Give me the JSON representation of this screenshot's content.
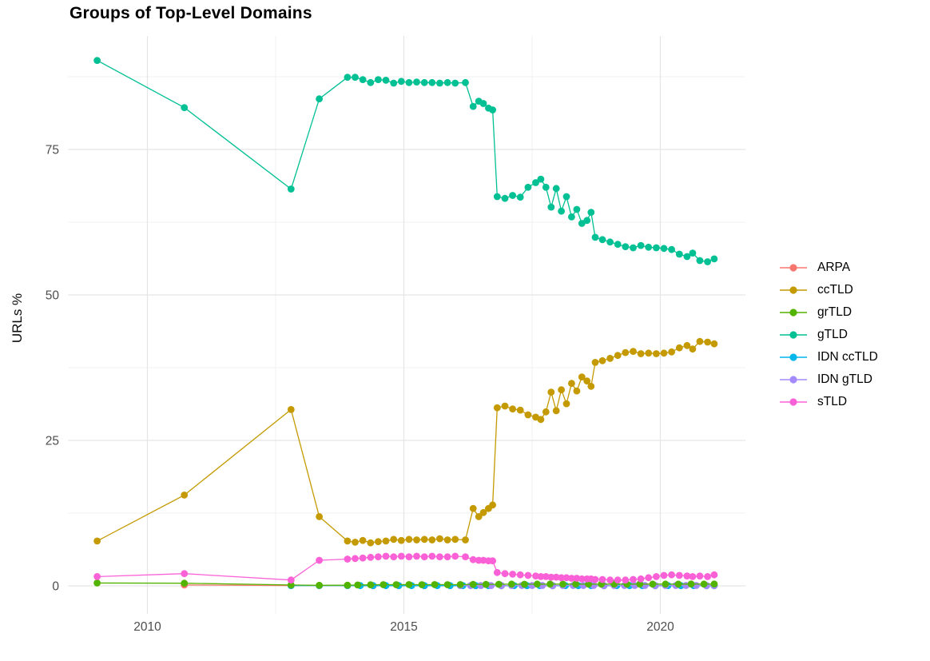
{
  "figure": {
    "title": "Groups of Top-Level Domains",
    "y_axis_title": "URLs %"
  },
  "chart_data": {
    "type": "line",
    "title": "Groups of Top-Level Domains",
    "xlabel": "",
    "ylabel": "URLs %",
    "grid": true,
    "legend_position": "right",
    "x_ticks": [
      2010,
      2015,
      2020
    ],
    "x_minor": [
      2012.5,
      2017.5
    ],
    "y_ticks": [
      0,
      25,
      50,
      75
    ],
    "y_minor": [
      12.5,
      37.5,
      62.5,
      87.5
    ],
    "xlim": [
      2008.45,
      2021.65
    ],
    "ylim": [
      -4.8,
      94.5
    ],
    "series": [
      {
        "name": "ARPA",
        "color": "#F8766D",
        "points": [
          [
            2010.72,
            0.15
          ],
          [
            2012.8,
            0.06
          ],
          [
            2013.35,
            0.05
          ],
          [
            2013.9,
            0.04
          ],
          [
            2014.4,
            0.03
          ],
          [
            2014.9,
            0.03
          ],
          [
            2015.4,
            0.03
          ],
          [
            2015.9,
            0.03
          ],
          [
            2016.4,
            0.03
          ],
          [
            2016.9,
            0.03
          ],
          [
            2017.4,
            0.03
          ],
          [
            2017.9,
            0.03
          ],
          [
            2018.4,
            0.03
          ],
          [
            2018.9,
            0.03
          ],
          [
            2019.4,
            0.03
          ],
          [
            2019.9,
            0.03
          ],
          [
            2020.4,
            0.03
          ],
          [
            2020.9,
            0.03
          ],
          [
            2021.05,
            0.03
          ]
        ]
      },
      {
        "name": "IDN ccTLD",
        "color": "#00B6EB",
        "points": [
          [
            2012.8,
            0.06
          ],
          [
            2013.35,
            0.05
          ],
          [
            2013.9,
            0.05
          ],
          [
            2014.15,
            0.04
          ],
          [
            2014.4,
            0.04
          ],
          [
            2014.65,
            0.04
          ],
          [
            2014.9,
            0.04
          ],
          [
            2015.15,
            0.04
          ],
          [
            2015.4,
            0.04
          ],
          [
            2015.65,
            0.04
          ],
          [
            2015.9,
            0.04
          ],
          [
            2016.15,
            0.04
          ],
          [
            2016.4,
            0.04
          ],
          [
            2016.65,
            0.04
          ],
          [
            2016.9,
            0.04
          ],
          [
            2017.15,
            0.04
          ],
          [
            2017.4,
            0.04
          ],
          [
            2017.65,
            0.04
          ],
          [
            2017.9,
            0.04
          ],
          [
            2018.15,
            0.04
          ],
          [
            2018.4,
            0.04
          ],
          [
            2018.65,
            0.04
          ],
          [
            2018.9,
            0.04
          ],
          [
            2019.15,
            0.04
          ],
          [
            2019.4,
            0.04
          ],
          [
            2019.65,
            0.04
          ],
          [
            2019.9,
            0.04
          ],
          [
            2020.15,
            0.04
          ],
          [
            2020.4,
            0.04
          ],
          [
            2020.65,
            0.04
          ],
          [
            2020.9,
            0.04
          ],
          [
            2021.05,
            0.04
          ]
        ]
      },
      {
        "name": "IDN gTLD",
        "color": "#A58AFF",
        "points": [
          [
            2016.1,
            0.06
          ],
          [
            2016.3,
            0.06
          ],
          [
            2016.5,
            0.06
          ],
          [
            2016.7,
            0.06
          ],
          [
            2016.9,
            0.07
          ],
          [
            2017.1,
            0.07
          ],
          [
            2017.3,
            0.07
          ],
          [
            2017.5,
            0.07
          ],
          [
            2017.7,
            0.07
          ],
          [
            2017.9,
            0.07
          ],
          [
            2018.1,
            0.07
          ],
          [
            2018.3,
            0.07
          ],
          [
            2018.5,
            0.07
          ],
          [
            2018.7,
            0.07
          ],
          [
            2018.9,
            0.07
          ],
          [
            2019.1,
            0.07
          ],
          [
            2019.3,
            0.07
          ],
          [
            2019.5,
            0.07
          ],
          [
            2019.7,
            0.07
          ],
          [
            2019.9,
            0.07
          ],
          [
            2020.1,
            0.07
          ],
          [
            2020.3,
            0.07
          ],
          [
            2020.5,
            0.07
          ],
          [
            2020.7,
            0.07
          ],
          [
            2020.9,
            0.07
          ],
          [
            2021.05,
            0.07
          ]
        ]
      },
      {
        "name": "grTLD",
        "color": "#53B400",
        "points": [
          [
            2009.02,
            0.5
          ],
          [
            2010.72,
            0.45
          ],
          [
            2012.8,
            0.15
          ],
          [
            2013.35,
            0.1
          ],
          [
            2013.9,
            0.12
          ],
          [
            2014.1,
            0.15
          ],
          [
            2014.35,
            0.18
          ],
          [
            2014.6,
            0.2
          ],
          [
            2014.85,
            0.2
          ],
          [
            2015.1,
            0.22
          ],
          [
            2015.35,
            0.2
          ],
          [
            2015.6,
            0.22
          ],
          [
            2015.85,
            0.2
          ],
          [
            2016.1,
            0.22
          ],
          [
            2016.35,
            0.25
          ],
          [
            2016.6,
            0.25
          ],
          [
            2016.85,
            0.28
          ],
          [
            2017.1,
            0.3
          ],
          [
            2017.35,
            0.28
          ],
          [
            2017.6,
            0.3
          ],
          [
            2017.85,
            0.3
          ],
          [
            2018.1,
            0.3
          ],
          [
            2018.35,
            0.3
          ],
          [
            2018.6,
            0.3
          ],
          [
            2018.85,
            0.3
          ],
          [
            2019.1,
            0.3
          ],
          [
            2019.35,
            0.3
          ],
          [
            2019.6,
            0.3
          ],
          [
            2019.85,
            0.3
          ],
          [
            2020.1,
            0.3
          ],
          [
            2020.35,
            0.3
          ],
          [
            2020.6,
            0.32
          ],
          [
            2020.85,
            0.3
          ],
          [
            2021.05,
            0.32
          ]
        ]
      },
      {
        "name": "ccTLD",
        "color": "#C49A00",
        "points": [
          [
            2009.02,
            7.7
          ],
          [
            2010.72,
            15.6
          ],
          [
            2012.8,
            30.3
          ],
          [
            2013.35,
            11.9
          ],
          [
            2013.9,
            7.7
          ],
          [
            2014.05,
            7.5
          ],
          [
            2014.2,
            7.8
          ],
          [
            2014.35,
            7.4
          ],
          [
            2014.5,
            7.6
          ],
          [
            2014.65,
            7.7
          ],
          [
            2014.8,
            8.0
          ],
          [
            2014.95,
            7.8
          ],
          [
            2015.1,
            8.0
          ],
          [
            2015.25,
            7.9
          ],
          [
            2015.4,
            8.0
          ],
          [
            2015.55,
            7.9
          ],
          [
            2015.7,
            8.1
          ],
          [
            2015.85,
            7.9
          ],
          [
            2016.0,
            8.0
          ],
          [
            2016.2,
            7.9
          ],
          [
            2016.35,
            13.3
          ],
          [
            2016.46,
            11.9
          ],
          [
            2016.55,
            12.6
          ],
          [
            2016.65,
            13.3
          ],
          [
            2016.73,
            13.9
          ],
          [
            2016.82,
            30.6
          ],
          [
            2016.97,
            30.9
          ],
          [
            2017.12,
            30.4
          ],
          [
            2017.27,
            30.2
          ],
          [
            2017.42,
            29.4
          ],
          [
            2017.57,
            29.0
          ],
          [
            2017.67,
            28.6
          ],
          [
            2017.77,
            29.9
          ],
          [
            2017.87,
            33.3
          ],
          [
            2017.97,
            30.1
          ],
          [
            2018.07,
            33.7
          ],
          [
            2018.17,
            31.3
          ],
          [
            2018.27,
            34.8
          ],
          [
            2018.37,
            33.5
          ],
          [
            2018.47,
            35.9
          ],
          [
            2018.57,
            35.2
          ],
          [
            2018.65,
            34.3
          ],
          [
            2018.73,
            38.4
          ],
          [
            2018.87,
            38.7
          ],
          [
            2019.02,
            39.1
          ],
          [
            2019.17,
            39.6
          ],
          [
            2019.32,
            40.1
          ],
          [
            2019.47,
            40.3
          ],
          [
            2019.62,
            39.9
          ],
          [
            2019.77,
            40.0
          ],
          [
            2019.92,
            39.9
          ],
          [
            2020.07,
            40.0
          ],
          [
            2020.22,
            40.2
          ],
          [
            2020.37,
            40.9
          ],
          [
            2020.52,
            41.3
          ],
          [
            2020.63,
            40.7
          ],
          [
            2020.77,
            42.0
          ],
          [
            2020.92,
            41.9
          ],
          [
            2021.05,
            41.6
          ]
        ]
      },
      {
        "name": "gTLD",
        "color": "#00C094",
        "points": [
          [
            2009.02,
            90.3
          ],
          [
            2010.72,
            82.2
          ],
          [
            2012.8,
            68.2
          ],
          [
            2013.35,
            83.7
          ],
          [
            2013.9,
            87.4
          ],
          [
            2014.05,
            87.4
          ],
          [
            2014.2,
            87.0
          ],
          [
            2014.35,
            86.5
          ],
          [
            2014.5,
            87.0
          ],
          [
            2014.65,
            86.9
          ],
          [
            2014.8,
            86.4
          ],
          [
            2014.95,
            86.7
          ],
          [
            2015.1,
            86.5
          ],
          [
            2015.25,
            86.6
          ],
          [
            2015.4,
            86.5
          ],
          [
            2015.55,
            86.5
          ],
          [
            2015.7,
            86.4
          ],
          [
            2015.85,
            86.5
          ],
          [
            2016.0,
            86.4
          ],
          [
            2016.2,
            86.5
          ],
          [
            2016.35,
            82.4
          ],
          [
            2016.46,
            83.3
          ],
          [
            2016.55,
            82.9
          ],
          [
            2016.65,
            82.1
          ],
          [
            2016.73,
            81.8
          ],
          [
            2016.82,
            66.9
          ],
          [
            2016.97,
            66.6
          ],
          [
            2017.12,
            67.1
          ],
          [
            2017.27,
            66.8
          ],
          [
            2017.42,
            68.5
          ],
          [
            2017.57,
            69.3
          ],
          [
            2017.67,
            69.9
          ],
          [
            2017.77,
            68.5
          ],
          [
            2017.87,
            65.1
          ],
          [
            2017.97,
            68.3
          ],
          [
            2018.07,
            64.4
          ],
          [
            2018.17,
            66.9
          ],
          [
            2018.27,
            63.4
          ],
          [
            2018.37,
            64.7
          ],
          [
            2018.47,
            62.3
          ],
          [
            2018.57,
            62.8
          ],
          [
            2018.65,
            64.2
          ],
          [
            2018.73,
            59.9
          ],
          [
            2018.87,
            59.5
          ],
          [
            2019.02,
            59.1
          ],
          [
            2019.17,
            58.7
          ],
          [
            2019.32,
            58.3
          ],
          [
            2019.47,
            58.1
          ],
          [
            2019.62,
            58.5
          ],
          [
            2019.77,
            58.2
          ],
          [
            2019.92,
            58.1
          ],
          [
            2020.07,
            58.0
          ],
          [
            2020.22,
            57.8
          ],
          [
            2020.37,
            57.0
          ],
          [
            2020.52,
            56.6
          ],
          [
            2020.63,
            57.2
          ],
          [
            2020.77,
            55.9
          ],
          [
            2020.92,
            55.7
          ],
          [
            2021.05,
            56.2
          ]
        ]
      },
      {
        "name": "sTLD",
        "color": "#FB61D7",
        "points": [
          [
            2009.02,
            1.6
          ],
          [
            2010.72,
            2.1
          ],
          [
            2012.8,
            1.0
          ],
          [
            2013.35,
            4.4
          ],
          [
            2013.9,
            4.6
          ],
          [
            2014.05,
            4.7
          ],
          [
            2014.2,
            4.8
          ],
          [
            2014.35,
            4.9
          ],
          [
            2014.5,
            5.0
          ],
          [
            2014.65,
            5.1
          ],
          [
            2014.8,
            5.0
          ],
          [
            2014.95,
            5.1
          ],
          [
            2015.1,
            5.0
          ],
          [
            2015.25,
            5.1
          ],
          [
            2015.4,
            5.0
          ],
          [
            2015.55,
            5.1
          ],
          [
            2015.7,
            5.0
          ],
          [
            2015.85,
            5.0
          ],
          [
            2016.0,
            5.1
          ],
          [
            2016.2,
            5.0
          ],
          [
            2016.35,
            4.5
          ],
          [
            2016.46,
            4.4
          ],
          [
            2016.55,
            4.4
          ],
          [
            2016.65,
            4.3
          ],
          [
            2016.73,
            4.3
          ],
          [
            2016.82,
            2.3
          ],
          [
            2016.97,
            2.1
          ],
          [
            2017.12,
            2.0
          ],
          [
            2017.27,
            1.9
          ],
          [
            2017.42,
            1.8
          ],
          [
            2017.57,
            1.7
          ],
          [
            2017.67,
            1.6
          ],
          [
            2017.77,
            1.6
          ],
          [
            2017.87,
            1.5
          ],
          [
            2017.97,
            1.5
          ],
          [
            2018.07,
            1.4
          ],
          [
            2018.17,
            1.4
          ],
          [
            2018.27,
            1.3
          ],
          [
            2018.37,
            1.3
          ],
          [
            2018.47,
            1.2
          ],
          [
            2018.57,
            1.2
          ],
          [
            2018.65,
            1.2
          ],
          [
            2018.73,
            1.1
          ],
          [
            2018.87,
            1.1
          ],
          [
            2019.02,
            1.0
          ],
          [
            2019.17,
            1.0
          ],
          [
            2019.32,
            1.0
          ],
          [
            2019.47,
            1.1
          ],
          [
            2019.62,
            1.2
          ],
          [
            2019.77,
            1.4
          ],
          [
            2019.92,
            1.6
          ],
          [
            2020.07,
            1.8
          ],
          [
            2020.22,
            1.9
          ],
          [
            2020.37,
            1.8
          ],
          [
            2020.52,
            1.7
          ],
          [
            2020.63,
            1.6
          ],
          [
            2020.77,
            1.7
          ],
          [
            2020.92,
            1.6
          ],
          [
            2021.05,
            1.9
          ]
        ]
      }
    ],
    "legend_order": [
      "ARPA",
      "ccTLD",
      "grTLD",
      "gTLD",
      "IDN ccTLD",
      "IDN gTLD",
      "sTLD"
    ],
    "colors": {
      "ARPA": "#F8766D",
      "ccTLD": "#C49A00",
      "grTLD": "#53B400",
      "gTLD": "#00C094",
      "IDN ccTLD": "#00B6EB",
      "IDN gTLD": "#A58AFF",
      "sTLD": "#FB61D7",
      "grid_major": "#E5E5E5",
      "grid_minor": "#F1F1F1",
      "tick_label": "#4D4D4D"
    }
  }
}
